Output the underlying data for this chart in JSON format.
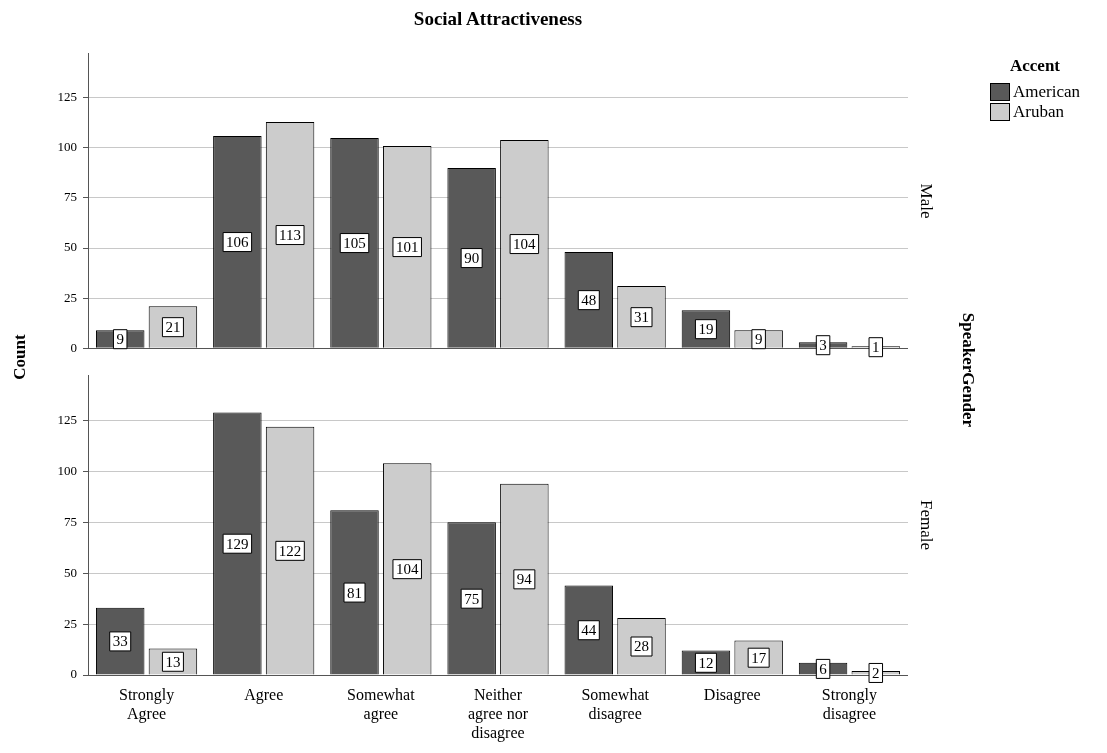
{
  "chart_data": [
    {
      "type": "bar",
      "title": "Social Attractiveness",
      "ylabel": "Count",
      "y2label": "Male",
      "legend_title": "Accent",
      "legend": "top right",
      "annotations": [
        "SpeakerGender"
      ],
      "categories": [
        null,
        null,
        null,
        null,
        null,
        null,
        null
      ],
      "series": [
        {
          "name": "American",
          "color": "#595959",
          "values": [
            9,
            106,
            105,
            90,
            48,
            19,
            3
          ]
        },
        {
          "name": "Aruban",
          "color": "#cccccc",
          "values": [
            21,
            113,
            101,
            104,
            31,
            9,
            1
          ]
        }
      ],
      "ylim": [
        0,
        147
      ],
      "yticks": [
        0,
        25,
        50,
        75,
        100,
        125
      ],
      "grid": "y",
      "data_labels": true,
      "tick_labels": "y"
    },
    {
      "type": "bar",
      "y2label": "Female",
      "categories": [
        "Strongly Agree",
        "Agree",
        "Somewhat agree",
        "Neither agree nor disagree",
        "Somewhat disagree",
        "Disagree",
        "Strongly disagree"
      ],
      "series": [
        {
          "color": "#595959",
          "values": [
            33,
            129,
            81,
            75,
            44,
            12,
            6
          ]
        },
        {
          "color": "#cccccc",
          "values": [
            13,
            122,
            104,
            94,
            28,
            17,
            2
          ]
        }
      ],
      "ylim": [
        0,
        147
      ],
      "yticks": [
        0,
        25,
        50,
        75,
        100,
        125
      ],
      "grid": "y",
      "data_labels": true
    }
  ]
}
